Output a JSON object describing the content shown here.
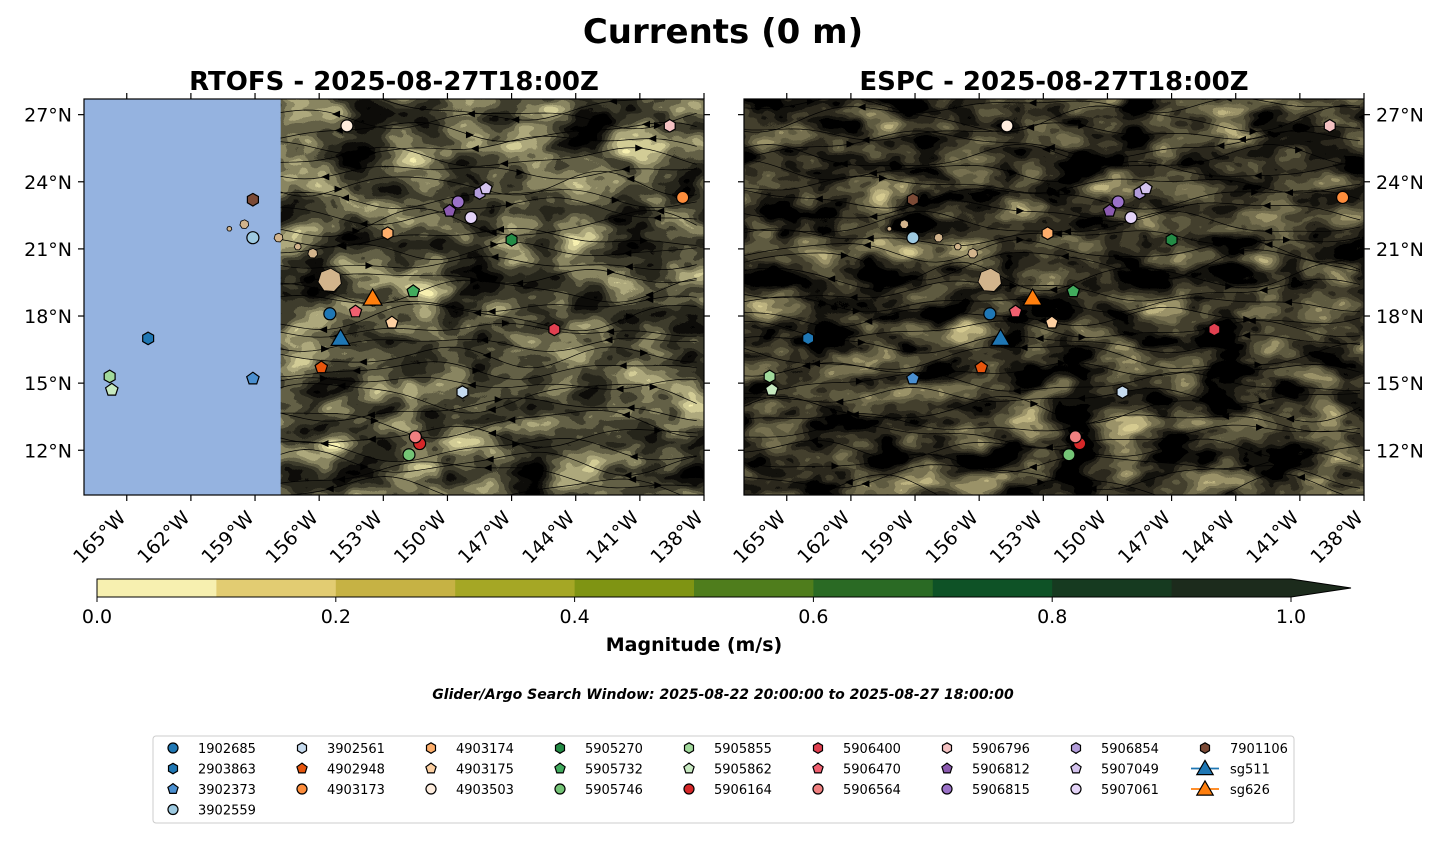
{
  "title": "Currents (0 m)",
  "search_window": "Glider/Argo Search Window: 2025-08-22 20:00:00 to 2025-08-27 18:00:00",
  "colors": {
    "ocean_land_mask": "#95b3e0",
    "land": "#d2b48c",
    "marker_edge": "#000000",
    "scale": [
      "#f7f0b0",
      "#e2cc72",
      "#c6b244",
      "#a5a725",
      "#7f9413",
      "#4f7d1c",
      "#2a6a24",
      "#0e5226",
      "#163a20",
      "#1c2b1c"
    ]
  },
  "colorbar": {
    "label": "Magnitude (m/s)",
    "ticks": [
      "0.0",
      "0.2",
      "0.4",
      "0.6",
      "0.8",
      "1.0"
    ],
    "levels": [
      0.0,
      0.1,
      0.2,
      0.3,
      0.4,
      0.5,
      0.6,
      0.7,
      0.8,
      0.9,
      1.0
    ],
    "extend": "max"
  },
  "chart_data": [
    {
      "type": "heatmap",
      "title": "RTOFS - 2025-08-27T18:00Z",
      "variable": "current magnitude (m/s) with streamlines",
      "xlabels": [
        "165°W",
        "162°W",
        "159°W",
        "156°W",
        "153°W",
        "150°W",
        "147°W",
        "144°W",
        "141°W",
        "138°W"
      ],
      "ylabels": [
        "27°N",
        "24°N",
        "21°N",
        "18°N",
        "15°N",
        "12°N"
      ],
      "lon_range": [
        -167,
        -138
      ],
      "lat_range": [
        10,
        27.7
      ],
      "no_data_west_of_lon": -157.8,
      "vmin": 0.0,
      "vmax": 1.0
    },
    {
      "type": "heatmap",
      "title": "ESPC - 2025-08-27T18:00Z",
      "variable": "current magnitude (m/s) with streamlines",
      "xlabels": [
        "165°W",
        "162°W",
        "159°W",
        "156°W",
        "153°W",
        "150°W",
        "147°W",
        "144°W",
        "141°W",
        "138°W"
      ],
      "ylabels": [
        "27°N",
        "24°N",
        "21°N",
        "18°N",
        "15°N",
        "12°N"
      ],
      "lon_range": [
        -167,
        -138
      ],
      "lat_range": [
        10,
        27.7
      ],
      "vmin": 0.0,
      "vmax": 1.0
    }
  ],
  "platforms": [
    {
      "id": "1902685",
      "shape": "circle",
      "color": "#1f77b4",
      "lon": -155.5,
      "lat": 18.1
    },
    {
      "id": "2903863",
      "shape": "hexagon",
      "color": "#1f77b4",
      "lon": -164.0,
      "lat": 17.0
    },
    {
      "id": "3902373",
      "shape": "pentagon",
      "color": "#4a8fd0",
      "lon": -159.1,
      "lat": 15.2
    },
    {
      "id": "3902559",
      "shape": "circle",
      "color": "#9ecae1",
      "lon": -159.1,
      "lat": 21.5
    },
    {
      "id": "3902561",
      "shape": "hexagon",
      "color": "#c6dbef",
      "lon": -149.3,
      "lat": 14.6
    },
    {
      "id": "4902948",
      "shape": "pentagon",
      "color": "#e6550d",
      "lon": -155.9,
      "lat": 15.7
    },
    {
      "id": "4903173",
      "shape": "circle",
      "color": "#fd8d3c",
      "lon": -139.0,
      "lat": 23.3
    },
    {
      "id": "4903174",
      "shape": "hexagon",
      "color": "#fdae6b",
      "lon": -152.8,
      "lat": 21.7
    },
    {
      "id": "4903175",
      "shape": "pentagon",
      "color": "#fdd0a2",
      "lon": -152.6,
      "lat": 17.7
    },
    {
      "id": "4903503",
      "shape": "circle",
      "color": "#feedde",
      "lon": -154.7,
      "lat": 26.5
    },
    {
      "id": "5905270",
      "shape": "hexagon",
      "color": "#238b45",
      "lon": -147.0,
      "lat": 21.4
    },
    {
      "id": "5905732",
      "shape": "pentagon",
      "color": "#41ab5d",
      "lon": -151.6,
      "lat": 19.1
    },
    {
      "id": "5905746",
      "shape": "circle",
      "color": "#74c476",
      "lon": -151.8,
      "lat": 11.8
    },
    {
      "id": "5905855",
      "shape": "hexagon",
      "color": "#a1d99b",
      "lon": -165.8,
      "lat": 15.3
    },
    {
      "id": "5905862",
      "shape": "pentagon",
      "color": "#c7e9c0",
      "lon": -165.7,
      "lat": 14.7
    },
    {
      "id": "5906164",
      "shape": "circle",
      "color": "#d62728",
      "lon": -151.3,
      "lat": 12.3
    },
    {
      "id": "5906400",
      "shape": "hexagon",
      "color": "#e04050",
      "lon": -145.0,
      "lat": 17.4
    },
    {
      "id": "5906470",
      "shape": "pentagon",
      "color": "#f06070",
      "lon": -154.3,
      "lat": 18.2
    },
    {
      "id": "5906564",
      "shape": "circle",
      "color": "#f08080",
      "lon": -151.5,
      "lat": 12.6
    },
    {
      "id": "5906796",
      "shape": "hexagon",
      "color": "#f4c2c2",
      "lon": -139.6,
      "lat": 26.5
    },
    {
      "id": "5906812",
      "shape": "pentagon",
      "color": "#8c5bb0",
      "lon": -149.9,
      "lat": 22.7
    },
    {
      "id": "5906815",
      "shape": "circle",
      "color": "#9b72c8",
      "lon": -149.5,
      "lat": 23.1
    },
    {
      "id": "5906854",
      "shape": "hexagon",
      "color": "#b39ddb",
      "lon": -148.5,
      "lat": 23.5
    },
    {
      "id": "5907049",
      "shape": "pentagon",
      "color": "#d4c3ee",
      "lon": -148.2,
      "lat": 23.7
    },
    {
      "id": "5907061",
      "shape": "circle",
      "color": "#e4d4f8",
      "lon": -148.9,
      "lat": 22.4
    },
    {
      "id": "7901106",
      "shape": "hexagon",
      "color": "#7b4a36",
      "lon": -159.1,
      "lat": 23.2
    },
    {
      "id": "sg511",
      "shape": "triangle",
      "color": "#1f77b4",
      "lon": -155.0,
      "lat": 17.0
    },
    {
      "id": "sg626",
      "shape": "triangle",
      "color": "#ff7f0e",
      "lon": -153.5,
      "lat": 18.8
    }
  ]
}
